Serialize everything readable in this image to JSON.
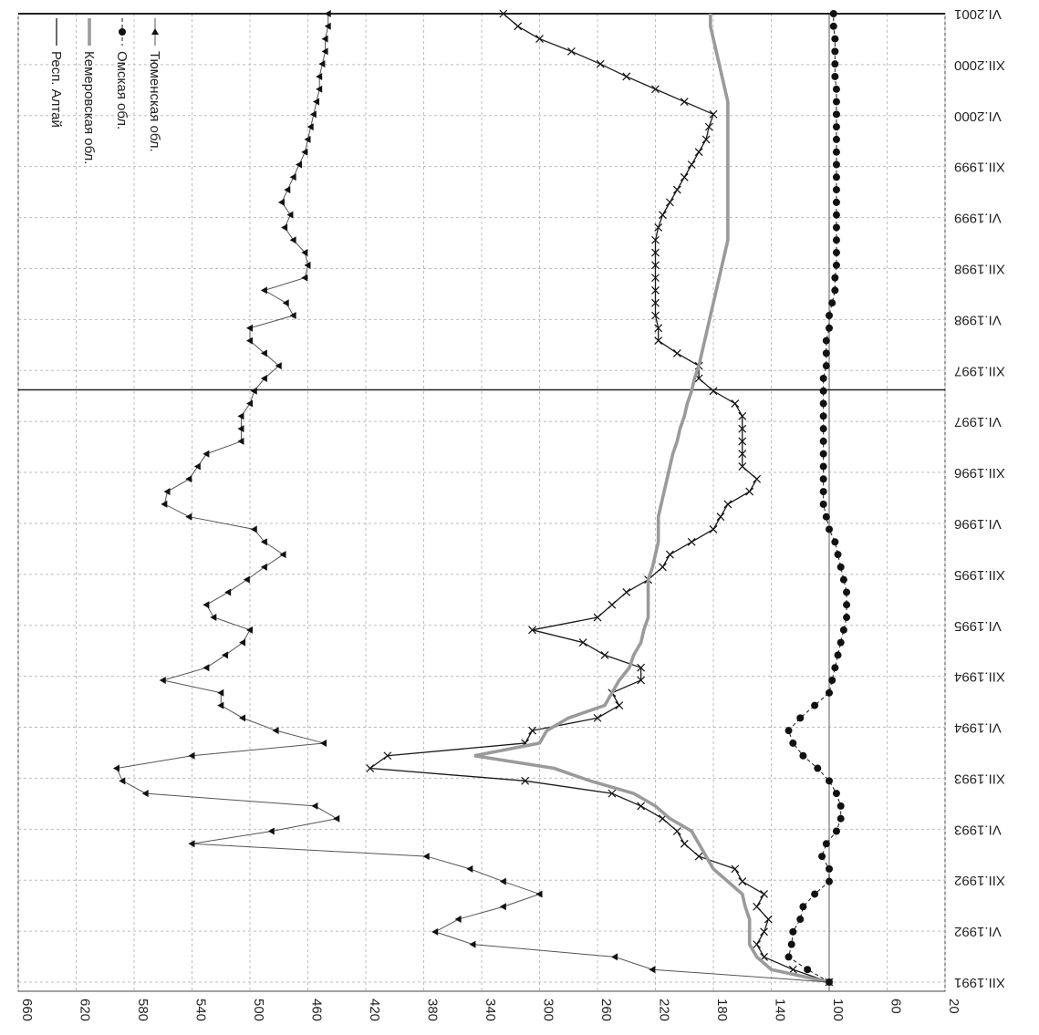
{
  "chart_data": {
    "type": "line",
    "orientation": "rotated-90",
    "title": "",
    "xlabel": "",
    "ylabel": "",
    "ylim": [
      20,
      660
    ],
    "yticks": [
      660,
      620,
      580,
      540,
      500,
      460,
      420,
      380,
      340,
      300,
      260,
      220,
      180,
      140,
      100,
      60,
      20
    ],
    "x_ticks": [
      "XII.1991",
      "VI.1992",
      "XII.1992",
      "VI.1993",
      "XII.1993",
      "VI.1994",
      "XII.1994",
      "VI.1995",
      "XII.1995",
      "VI.1996",
      "XII.1996",
      "VI.1997",
      "XII.1997",
      "VI.1998",
      "XII.1998",
      "VI.1999",
      "XII.1999",
      "VI.2000",
      "XII.2000",
      "VI.2001"
    ],
    "reference_lines": [
      100
    ],
    "break_at": "X.1997",
    "grid": true,
    "legend_position": "top-left",
    "legend": [
      {
        "name": "Респ. Алтай",
        "style": "thin-black"
      },
      {
        "name": "Кемеровская обл.",
        "style": "thick-grey"
      },
      {
        "name": "Омская обл.",
        "style": "dots"
      },
      {
        "name": "Тюменская обл.",
        "style": "triangles"
      }
    ],
    "series": [
      {
        "name": "Респ. Алтай",
        "style": "thin-black",
        "values": [
          100,
          125,
          145,
          150,
          145,
          142,
          150,
          145,
          160,
          165,
          190,
          200,
          205,
          215,
          230,
          250,
          310,
          417,
          405,
          310,
          305,
          260,
          245,
          250,
          230,
          230,
          255,
          270,
          305,
          260,
          250,
          240,
          225,
          215,
          210,
          195,
          180,
          175,
          170,
          155,
          150,
          160,
          160,
          160,
          160,
          160,
          165,
          180,
          190,
          190,
          205,
          218,
          218,
          220,
          220,
          220,
          220,
          220,
          220,
          220,
          218,
          215,
          210,
          205,
          200,
          195,
          190,
          185,
          183,
          180,
          200,
          220,
          240,
          258,
          278,
          300,
          315,
          325
        ]
      },
      {
        "name": "Кемеровская обл.",
        "style": "thick-grey",
        "values": [
          100,
          140,
          150,
          155,
          155,
          155,
          158,
          160,
          170,
          180,
          185,
          190,
          195,
          210,
          220,
          235,
          265,
          290,
          345,
          300,
          295,
          280,
          255,
          250,
          245,
          238,
          235,
          230,
          228,
          225,
          225,
          225,
          225,
          222,
          220,
          218,
          218,
          218,
          216,
          214,
          212,
          210,
          208,
          205,
          203,
          200,
          198,
          195,
          193,
          190,
          188,
          186,
          184,
          182,
          180,
          178,
          176,
          174,
          172,
          170,
          170,
          170,
          170,
          170,
          170,
          170,
          170,
          170,
          170,
          170,
          170,
          172,
          174,
          176,
          178,
          180,
          182,
          182
        ]
      },
      {
        "name": "Омская обл.",
        "style": "dots",
        "values": [
          100,
          115,
          128,
          126,
          125,
          120,
          118,
          110,
          100,
          100,
          105,
          102,
          95,
          92,
          92,
          95,
          100,
          108,
          118,
          125,
          128,
          120,
          110,
          100,
          98,
          96,
          94,
          92,
          90,
          88,
          88,
          88,
          90,
          92,
          94,
          96,
          100,
          102,
          104,
          104,
          104,
          104,
          104,
          104,
          104,
          104,
          104,
          104,
          104,
          102,
          102,
          102,
          100,
          100,
          98,
          96,
          96,
          95,
          95,
          95,
          95,
          95,
          95,
          95,
          95,
          95,
          95,
          95,
          95,
          95,
          95,
          95,
          96,
          96,
          96,
          96,
          97,
          97
        ]
      },
      {
        "name": "Тюменская обл.",
        "style": "triangles",
        "values": [
          100,
          222,
          248,
          346,
          372,
          356,
          325,
          300,
          325,
          348,
          378,
          540,
          485,
          440,
          455,
          572,
          588,
          592,
          540,
          449,
          482,
          505,
          520,
          520,
          560,
          530,
          517,
          505,
          500,
          525,
          530,
          515,
          502,
          490,
          477,
          490,
          497,
          542,
          559,
          557,
          542,
          536,
          530,
          506,
          506,
          506,
          500,
          497,
          490,
          480,
          490,
          500,
          500,
          470,
          475,
          490,
          462,
          460,
          462,
          470,
          476,
          472,
          478,
          474,
          470,
          466,
          462,
          460,
          458,
          456,
          454,
          452,
          452,
          450,
          448,
          448,
          446,
          446
        ]
      }
    ]
  }
}
